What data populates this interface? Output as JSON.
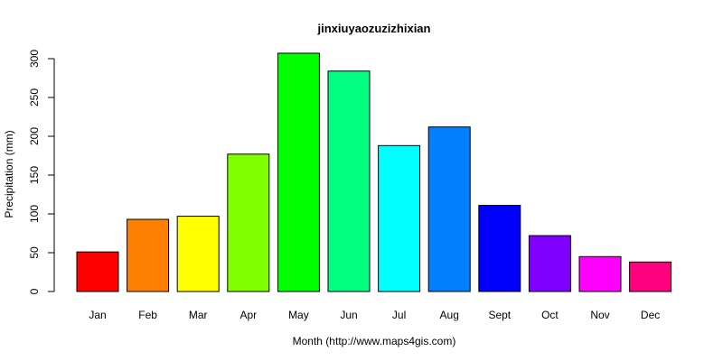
{
  "chart_data": {
    "type": "bar",
    "title": "jinxiuyaozuzizhixian",
    "xlabel": "Month (http://www.maps4gis.com)",
    "ylabel": "Precipitation (mm)",
    "categories": [
      "Jan",
      "Feb",
      "Mar",
      "Apr",
      "May",
      "Jun",
      "Jul",
      "Aug",
      "Sept",
      "Oct",
      "Nov",
      "Dec"
    ],
    "values": [
      51,
      93,
      97,
      177,
      307,
      284,
      188,
      212,
      111,
      72,
      45,
      38
    ],
    "colors": [
      "#FF0000",
      "#FF8000",
      "#FFFF00",
      "#80FF00",
      "#00FF00",
      "#00FF80",
      "#00FFFF",
      "#0080FF",
      "#0000FF",
      "#8000FF",
      "#FF00FF",
      "#FF0080"
    ],
    "ylim": [
      0,
      300
    ],
    "yticks": [
      0,
      50,
      100,
      150,
      200,
      250,
      300
    ],
    "grid": false,
    "legend": "none"
  }
}
